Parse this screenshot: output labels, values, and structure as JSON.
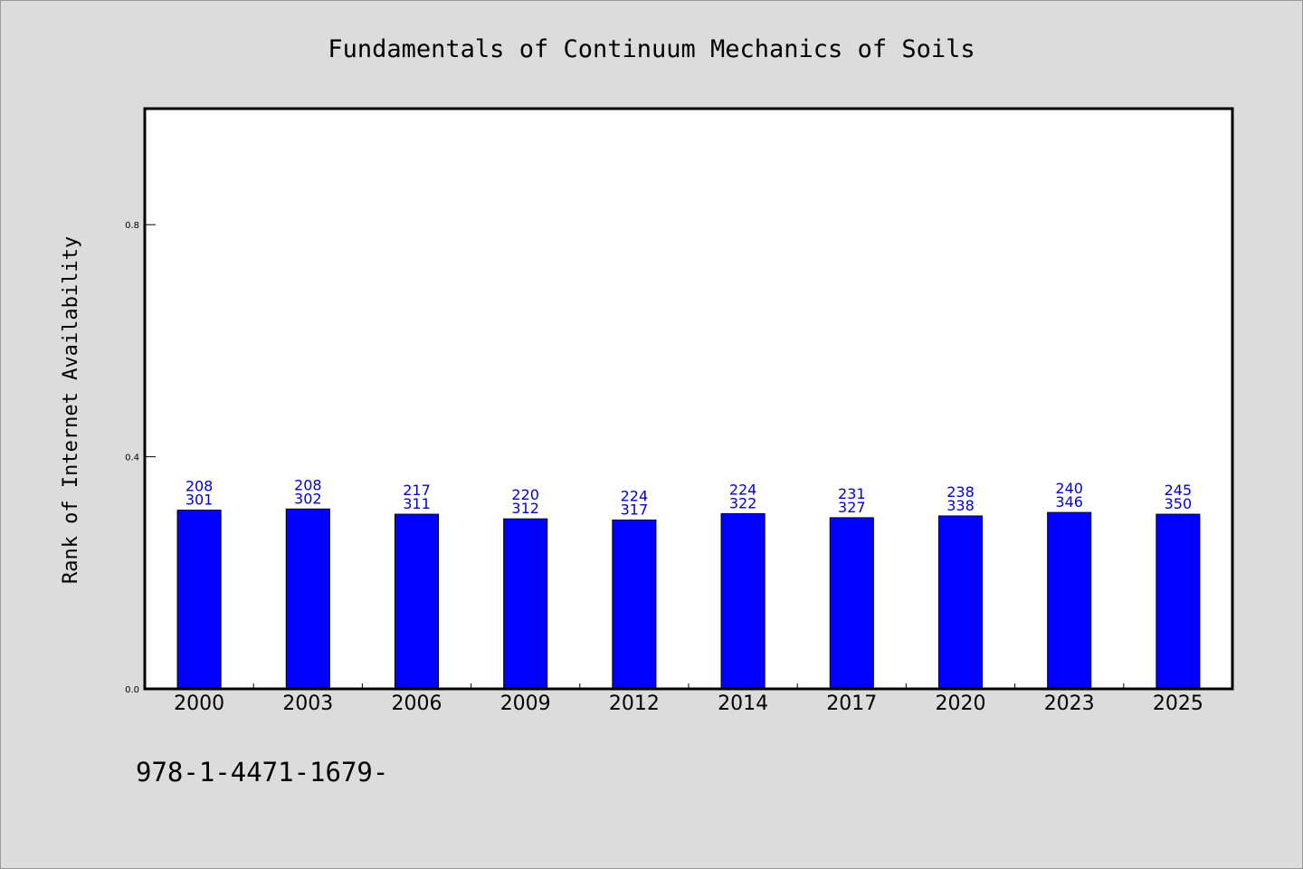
{
  "chart_data": {
    "type": "bar",
    "title": "Fundamentals of Continuum Mechanics of Soils",
    "xlabel": "",
    "ylabel": "Rank of Internet Availability",
    "ylim": [
      0,
      1.0
    ],
    "yticks": [
      0.0,
      0.4,
      0.8
    ],
    "ytick_labels": [
      "0.0",
      "0.4",
      "0.8"
    ],
    "grid": false,
    "categories": [
      "2000",
      "2003",
      "2006",
      "2009",
      "2012",
      "2014",
      "2017",
      "2020",
      "2023",
      "2025"
    ],
    "values": [
      0.308,
      0.31,
      0.301,
      0.293,
      0.291,
      0.302,
      0.295,
      0.298,
      0.304,
      0.301
    ],
    "label_top": [
      "208",
      "208",
      "217",
      "220",
      "224",
      "224",
      "231",
      "238",
      "240",
      "245"
    ],
    "label_bottom": [
      "301",
      "302",
      "311",
      "312",
      "317",
      "322",
      "327",
      "338",
      "346",
      "350"
    ],
    "bar_color": "#0000ff",
    "label_color": "#0000cc",
    "footnote": "978-1-4471-1679-"
  }
}
